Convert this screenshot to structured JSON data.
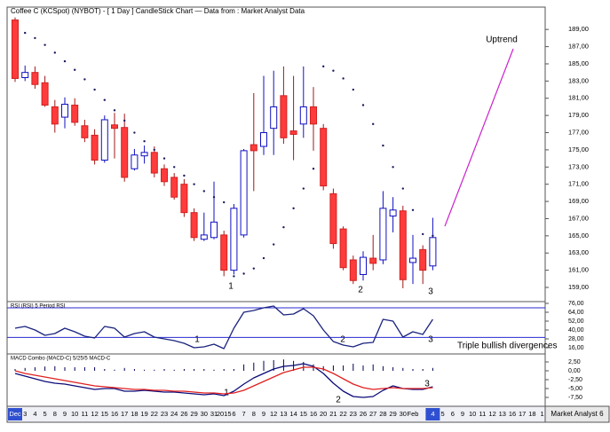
{
  "footer": "Market Analyst 6",
  "chart_data": [
    {
      "type": "candlestick",
      "title": "Coffee C (KCSpot) (NYBOT) -  [ 1 Day ] CandleStick Chart — Data from : Market Analyst Data",
      "categories": [
        "Dec",
        "3",
        "4",
        "5",
        "8",
        "9",
        "10",
        "11",
        "12",
        "15",
        "16",
        "17",
        "18",
        "19",
        "22",
        "23",
        "24",
        "26",
        "29",
        "30",
        "31",
        "2015",
        "6",
        "7",
        "8",
        "9",
        "12",
        "13",
        "14",
        "15",
        "16",
        "20",
        "21",
        "22",
        "23",
        "26",
        "27",
        "28",
        "29",
        "30",
        "Feb",
        null,
        "4",
        "5",
        "6",
        "9",
        "10",
        "11",
        "12",
        "13",
        "16",
        "17",
        "18",
        "1"
      ],
      "open": [
        190.1,
        183.4,
        184.0,
        182.8,
        180.0,
        178.8,
        180.2,
        177.8,
        176.7,
        173.8,
        177.9,
        177.6,
        172.8,
        174.3,
        174.7,
        172.8,
        171.8,
        171.0,
        167.7,
        164.6,
        164.8,
        165.1,
        161.0,
        165.1,
        175.6,
        175.4,
        177.5,
        181.3,
        177.2,
        178.0,
        180.0,
        177.5,
        169.9,
        165.8,
        162.2,
        160.5,
        162.4,
        162.2,
        167.3,
        167.9,
        161.9,
        163.4,
        161.5,
        null,
        null,
        null,
        null,
        null,
        null,
        null,
        null,
        null,
        null,
        null
      ],
      "high": [
        190.4,
        184.8,
        184.7,
        183.6,
        180.8,
        181.1,
        181.0,
        178.5,
        177.4,
        179.0,
        179.3,
        179.2,
        175.1,
        175.5,
        175.4,
        173.3,
        172.3,
        171.6,
        168.2,
        167.7,
        171.3,
        165.6,
        168.7,
        175.1,
        181.6,
        183.6,
        184.2,
        184.7,
        183.6,
        184.7,
        182.3,
        178.0,
        170.5,
        166.1,
        162.7,
        163.2,
        165.1,
        170.2,
        169.5,
        168.5,
        165.1,
        163.9,
        167.1,
        null,
        null,
        null,
        null,
        null,
        null,
        null,
        null,
        null,
        null,
        null
      ],
      "low": [
        182.9,
        183.0,
        182.1,
        180.0,
        177.0,
        177.5,
        177.8,
        175.9,
        173.3,
        173.5,
        174.0,
        171.3,
        172.6,
        173.4,
        171.8,
        170.8,
        169.2,
        167.2,
        164.4,
        164.4,
        164.6,
        160.3,
        160.5,
        164.8,
        170.2,
        174.4,
        174.4,
        175.7,
        173.8,
        176.4,
        174.9,
        170.3,
        163.5,
        161.0,
        159.4,
        159.8,
        161.0,
        161.7,
        165.4,
        158.9,
        159.4,
        159.4,
        161.0,
        null,
        null,
        null,
        null,
        null,
        null,
        null,
        null,
        null,
        null,
        null
      ],
      "close": [
        183.3,
        184.0,
        182.6,
        180.2,
        178.0,
        180.3,
        178.2,
        176.4,
        173.8,
        178.5,
        177.5,
        171.8,
        174.4,
        174.7,
        172.3,
        171.3,
        169.5,
        167.7,
        164.8,
        165.1,
        166.6,
        161.0,
        168.2,
        174.9,
        174.9,
        177.0,
        180.0,
        176.4,
        176.8,
        180.0,
        178.0,
        170.8,
        164.1,
        161.3,
        159.8,
        162.5,
        161.8,
        168.2,
        168.0,
        159.9,
        162.4,
        161.0,
        164.8,
        null,
        null,
        null,
        null,
        null,
        null,
        null,
        null,
        null,
        null,
        null
      ],
      "up_color": "#1010c0",
      "down_color": "#ff3b3b",
      "sar": {
        "color": "#1a1a5e",
        "values": [
          null,
          188.6,
          188.0,
          187.2,
          186.3,
          185.3,
          184.3,
          183.2,
          182.0,
          180.8,
          179.6,
          178.4,
          177.0,
          176.0,
          175.0,
          174.0,
          173.0,
          172.0,
          171.0,
          170.2,
          169.5,
          168.9,
          160.3,
          160.6,
          161.2,
          162.4,
          164.0,
          166.0,
          168.2,
          170.5,
          172.8,
          184.7,
          184.2,
          183.3,
          182.0,
          180.2,
          178.0,
          175.5,
          173.0,
          170.5,
          168.0,
          165.2,
          165.0,
          null,
          null,
          null,
          null,
          null,
          null,
          null,
          null,
          null,
          null,
          null
        ]
      },
      "ylim": [
        157.35,
        191.6
      ],
      "yticks": [
        {
          "value": 159,
          "label": "159,00"
        },
        {
          "value": 161,
          "label": "161,00"
        },
        {
          "value": 163,
          "label": "163,00"
        },
        {
          "value": 165,
          "label": "165,00"
        },
        {
          "value": 167,
          "label": "167,00"
        },
        {
          "value": 169,
          "label": "169,00"
        },
        {
          "value": 171,
          "label": "171,00"
        },
        {
          "value": 173,
          "label": "173,00"
        },
        {
          "value": 175,
          "label": "175,00"
        },
        {
          "value": 177,
          "label": "177,00"
        },
        {
          "value": 179,
          "label": "179,00"
        },
        {
          "value": 181,
          "label": "181,00"
        },
        {
          "value": 183,
          "label": "183,00"
        },
        {
          "value": 185,
          "label": "185,00"
        },
        {
          "value": 187,
          "label": "187,00"
        },
        {
          "value": 189,
          "label": "189,00"
        }
      ],
      "annotations": [
        "1",
        "2",
        "3",
        "Uptrend"
      ]
    },
    {
      "type": "line",
      "title": "RSI (RSI) 5 Period RSI",
      "series": [
        {
          "color": "#1a237e",
          "values": [
            42.4,
            44.8,
            40,
            32.8,
            35.2,
            42.4,
            37.6,
            31.6,
            29.2,
            44.8,
            42.4,
            30.4,
            35.2,
            37.6,
            30.4,
            28,
            25.6,
            22,
            16,
            17.2,
            20.8,
            14.8,
            42.4,
            64,
            66.4,
            70,
            72.4,
            60.4,
            61.6,
            68.8,
            59.2,
            40,
            24.4,
            19.6,
            17.2,
            22,
            23.2,
            54.4,
            52,
            30.4,
            37.6,
            34,
            54.4,
            null,
            null,
            null,
            null,
            null,
            null,
            null,
            null,
            null,
            null,
            null
          ]
        }
      ],
      "levels": [
        70,
        30
      ],
      "level_color": "#2a2ad0",
      "ylim": [
        7.6,
        78.4
      ],
      "yticks": [
        {
          "value": 16,
          "label": "16,00"
        },
        {
          "value": 28,
          "label": "28,00"
        },
        {
          "value": 40,
          "label": "40,00"
        },
        {
          "value": 52,
          "label": "52,00"
        },
        {
          "value": 64,
          "label": "64,00"
        },
        {
          "value": 76,
          "label": "76,00"
        }
      ],
      "annotations": [
        "1",
        "2",
        "3",
        "Triple bullish divergences"
      ]
    },
    {
      "type": "line",
      "title": "MACD Combo (MACD-C) 5/25/5 MACD-C",
      "series": [
        {
          "color": "#0b0b7a",
          "values": [
            -0.75,
            -1.5,
            -2.25,
            -3,
            -3.5,
            -3.75,
            -4.25,
            -4.75,
            -5.25,
            -5,
            -5,
            -5.75,
            -5.75,
            -5.5,
            -5.75,
            -6,
            -6,
            -6.25,
            -6.5,
            -6.75,
            -6.5,
            -7,
            -5.75,
            -3.75,
            -2,
            -0.75,
            0.5,
            1.25,
            1.5,
            2,
            1.25,
            -0.75,
            -3.5,
            -5.75,
            -7.25,
            -7.5,
            -7.25,
            -5.5,
            -4.25,
            -5,
            -5.25,
            -5.25,
            -4.5,
            null,
            null,
            null,
            null,
            null,
            null,
            null,
            null,
            null,
            null,
            null
          ]
        },
        {
          "color": "#e02020",
          "values": [
            0,
            -0.75,
            -1.25,
            -1.75,
            -2.25,
            -2.75,
            -3.25,
            -3.75,
            -4.25,
            -4.5,
            -4.75,
            -5,
            -5.25,
            -5.25,
            -5.5,
            -5.5,
            -5.75,
            -5.75,
            -6,
            -6.25,
            -6.25,
            -6.5,
            -6.25,
            -5.5,
            -4.25,
            -3,
            -1.75,
            -0.5,
            0.25,
            1,
            1,
            0.5,
            -0.75,
            -2.25,
            -3.75,
            -4.75,
            -5.25,
            -5,
            -4.75,
            -5,
            -5,
            -5,
            -4.75,
            null,
            null,
            null,
            null,
            null,
            null,
            null,
            null,
            null,
            null,
            null
          ]
        }
      ],
      "histogram": {
        "color": "#000055",
        "values": [
          0.5,
          0.8,
          1,
          1.2,
          1.3,
          1,
          1,
          1,
          1,
          0.5,
          0.3,
          0.8,
          0.5,
          0.3,
          0.3,
          0.5,
          0.3,
          0.5,
          0.5,
          0.5,
          0.3,
          0.5,
          0.5,
          1.8,
          2.3,
          2.8,
          3,
          3.2,
          2.8,
          2.5,
          1.8,
          1.3,
          1.5,
          1.5,
          2,
          1.5,
          1.8,
          1.3,
          1,
          0.8,
          0.5,
          0.5,
          0.8,
          null,
          null,
          null,
          null,
          null,
          null,
          null,
          null,
          null,
          null,
          null
        ]
      },
      "ylim": [
        -10,
        4.75
      ],
      "yticks": [
        {
          "value": -7.5,
          "label": "-7,50"
        },
        {
          "value": -5,
          "label": "-5,00"
        },
        {
          "value": -2.5,
          "label": "-2,50"
        },
        {
          "value": 0,
          "label": "0,00"
        },
        {
          "value": 2.5,
          "label": "2,50"
        }
      ],
      "annotations": [
        "1",
        "2",
        "3"
      ]
    }
  ]
}
